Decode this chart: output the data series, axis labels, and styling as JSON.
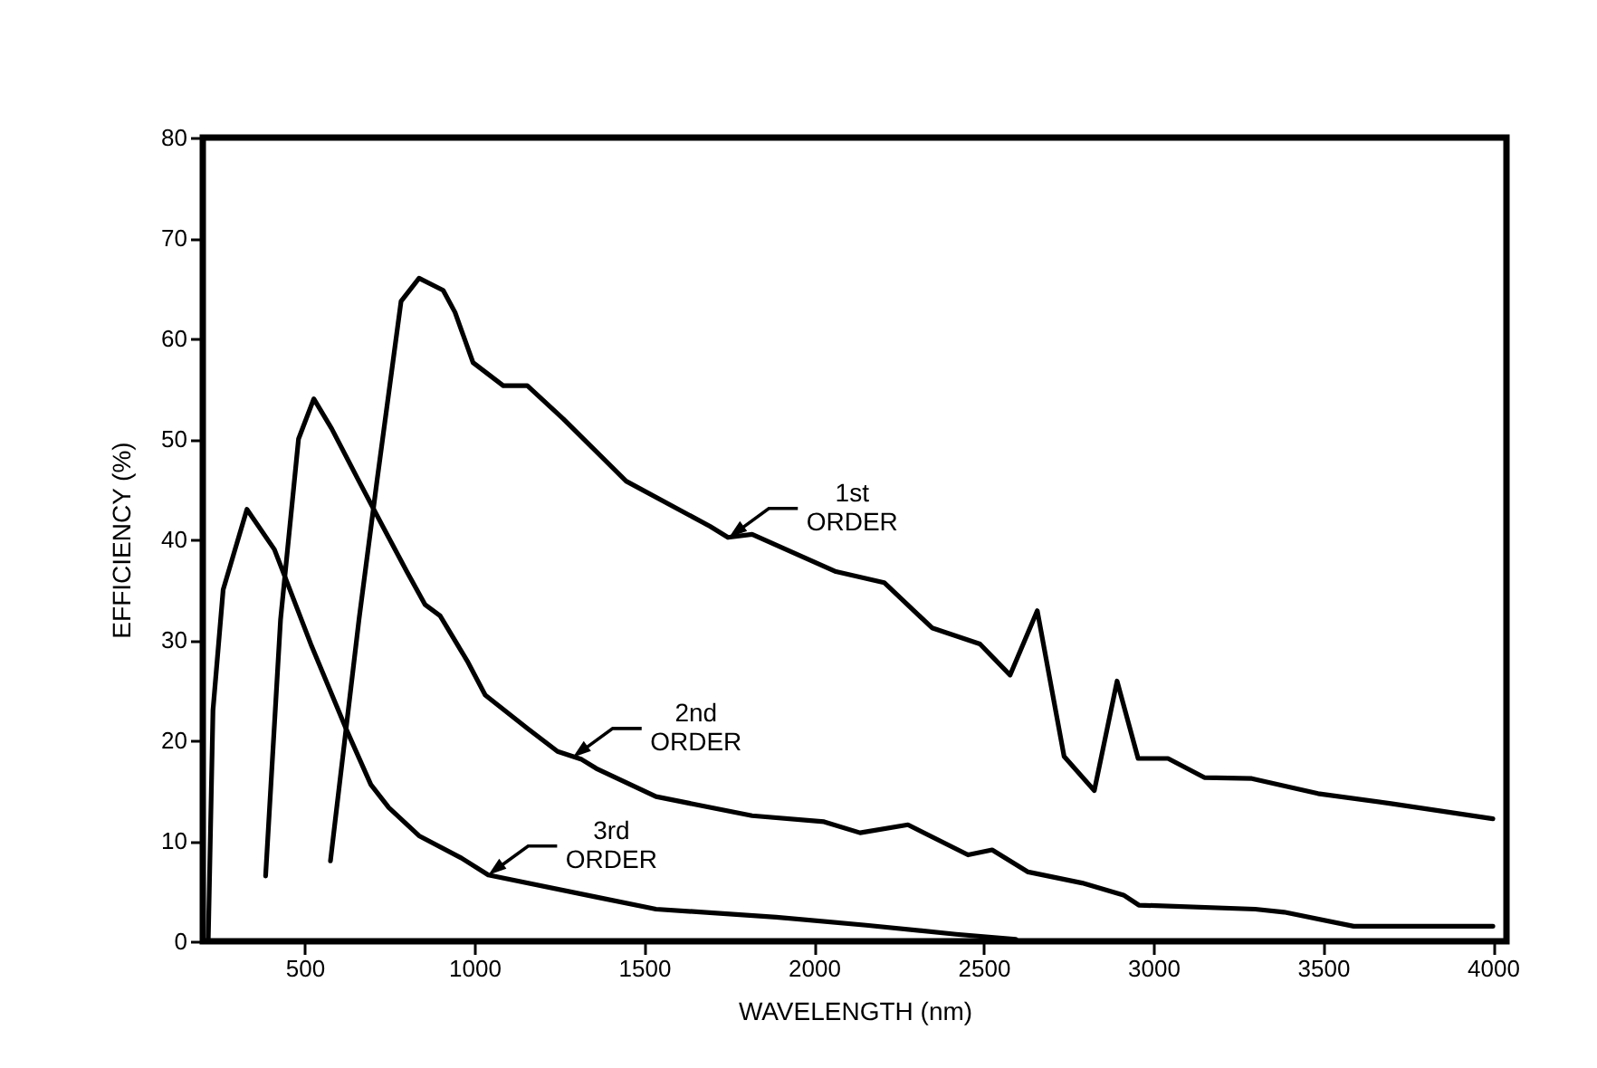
{
  "chart_data": {
    "type": "line",
    "xlabel": "WAVELENGTH (nm)",
    "ylabel": "EFFICIENCY (%)",
    "xlim": [
      200,
      4040
    ],
    "ylim": [
      0,
      80
    ],
    "xticks": [
      500,
      1000,
      1500,
      2000,
      2500,
      3000,
      3500,
      4000
    ],
    "yticks": [
      0,
      10,
      20,
      30,
      40,
      50,
      60,
      70,
      80
    ],
    "grid": false,
    "marker": "none",
    "line_style": "solid",
    "series": [
      {
        "color": "#000000",
        "x": [
          576,
          660,
          713,
          784,
          837,
          908,
          943,
          996,
          1085,
          1156,
          1262,
          1447,
          1694,
          1747,
          1818,
          2065,
          2207,
          2348,
          2489,
          2578,
          2658,
          2737,
          2826,
          2893,
          2955,
          3043,
          3150,
          3290,
          3485,
          3700,
          4000
        ],
        "values": [
          8,
          32,
          45.8,
          63.7,
          66,
          64.8,
          62.6,
          57.6,
          55.3,
          55.3,
          52,
          45.8,
          41.3,
          40.2,
          40.5,
          36.8,
          35.7,
          31.2,
          29.6,
          26.5,
          32.9,
          18.4,
          15,
          25.9,
          18.2,
          18.2,
          16.3,
          16.2,
          14.7,
          13.7,
          12.2
        ]
      },
      {
        "color": "#000000",
        "x": [
          385,
          429,
          482,
          527,
          580,
          660,
          730,
          801,
          855,
          899,
          979,
          1032,
          1156,
          1245,
          1316,
          1359,
          1535,
          1818,
          2030,
          2136,
          2277,
          2454,
          2525,
          2631,
          2790,
          2912,
          2957,
          3300,
          3385,
          3590,
          4000
        ],
        "values": [
          6.5,
          32,
          50,
          54,
          51,
          45.8,
          41.3,
          36.8,
          33.5,
          32.4,
          27.9,
          24.5,
          21.2,
          18.9,
          18.1,
          17.2,
          14.4,
          12.5,
          11.9,
          10.8,
          11.6,
          8.6,
          9.1,
          6.9,
          5.8,
          4.6,
          3.6,
          3.2,
          2.9,
          1.5,
          1.5
        ]
      },
      {
        "color": "#000000",
        "x": [
          216,
          230,
          260,
          330,
          411,
          518,
          624,
          695,
          748,
          837,
          961,
          1041,
          1359,
          1535,
          1889,
          2154,
          2419,
          2595
        ],
        "values": [
          0,
          23,
          35,
          43,
          39,
          29.6,
          21,
          15.6,
          13.3,
          10.5,
          8.3,
          6.6,
          4.4,
          3.2,
          2.4,
          1.6,
          0.7,
          0.2
        ]
      }
    ],
    "annotations": [
      {
        "text": "1st ORDER",
        "x": 1750,
        "y": 40.2
      },
      {
        "text": "2nd ORDER",
        "x": 1290,
        "y": 18.3
      },
      {
        "text": "3rd ORDER",
        "x": 1041,
        "y": 6.6
      }
    ]
  }
}
